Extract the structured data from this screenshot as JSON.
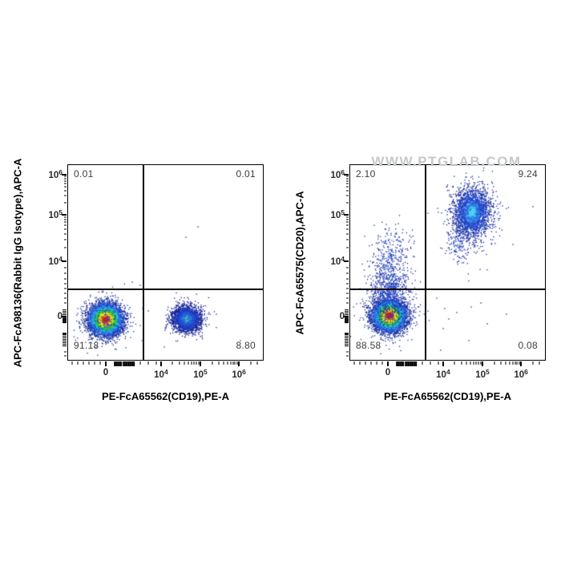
{
  "watermark": "WWW.PTGLAB.COM",
  "chart_data": {
    "type": "scatter",
    "subtype": "flow_cytometry_pseudocolor_dot_plot",
    "axes": {
      "x": {
        "scale": "biexponential",
        "tick_labels": [
          "0",
          "10^4",
          "10^5",
          "10^6"
        ]
      },
      "y": {
        "scale": "biexponential",
        "tick_labels": [
          "0",
          "10^4",
          "10^5",
          "10^6"
        ]
      }
    },
    "x_ticks": {
      "major": [
        {
          "pos": 0.193,
          "base": "0",
          "exp": ""
        },
        {
          "pos": 0.477,
          "base": "10",
          "exp": "4"
        },
        {
          "pos": 0.679,
          "base": "10",
          "exp": "5"
        },
        {
          "pos": 0.877,
          "base": "10",
          "exp": "6"
        }
      ],
      "minor": [
        0.021,
        0.049,
        0.078,
        0.107,
        0.136,
        0.165,
        0.37,
        0.412,
        0.452,
        0.537,
        0.572,
        0.597,
        0.617,
        0.633,
        0.646,
        0.658,
        0.669,
        0.739,
        0.774,
        0.799,
        0.818,
        0.834,
        0.847,
        0.858,
        0.869,
        0.937,
        0.972
      ],
      "cluster": [
        0.24,
        0.247,
        0.254,
        0.261,
        0.268,
        0.275,
        0.282,
        0.289,
        0.296,
        0.303,
        0.31,
        0.317,
        0.324,
        0.331,
        0.338
      ]
    },
    "y_ticks": {
      "major": [
        {
          "pos": 0.049,
          "base": "10",
          "exp": "6"
        },
        {
          "pos": 0.255,
          "base": "10",
          "exp": "5"
        },
        {
          "pos": 0.494,
          "base": "10",
          "exp": "4"
        },
        {
          "pos": 0.778,
          "base": "0",
          "exp": ""
        }
      ],
      "minor": [
        0.059,
        0.07,
        0.082,
        0.096,
        0.112,
        0.132,
        0.158,
        0.194,
        0.267,
        0.279,
        0.293,
        0.309,
        0.328,
        0.352,
        0.382,
        0.424,
        0.525,
        0.554,
        0.583,
        0.607,
        0.632,
        0.657,
        0.682,
        0.707,
        0.957,
        0.98
      ],
      "cluster": [
        0.744,
        0.752,
        0.76,
        0.768,
        0.776,
        0.784,
        0.792,
        0.8,
        0.808,
        0.864,
        0.872,
        0.88,
        0.888,
        0.896,
        0.904,
        0.912,
        0.92,
        0.928
      ]
    },
    "palettes": {
      "jet": [
        [
          0.4,
          "#dd1c10"
        ],
        [
          0.62,
          "#ff7800"
        ],
        [
          0.9,
          "#ffdc00"
        ],
        [
          1.1,
          "#b8e818"
        ],
        [
          1.4,
          "#2fc837"
        ],
        [
          1.68,
          "#22c3cf"
        ],
        [
          1.98,
          "#2e86e8"
        ],
        [
          2.35,
          "#2254d4"
        ],
        [
          9,
          "#18309f"
        ]
      ],
      "blue_cyan": [
        [
          0.22,
          "#35c8b0"
        ],
        [
          0.45,
          "#38aadc"
        ],
        [
          0.78,
          "#2f7ae0"
        ],
        [
          1.2,
          "#2453d6"
        ],
        [
          1.75,
          "#1c3cba"
        ],
        [
          9,
          "#141f93"
        ]
      ],
      "blue_cyan_bright": [
        [
          0.28,
          "#4fd2f2"
        ],
        [
          0.5,
          "#3ec1ee"
        ],
        [
          0.92,
          "#2b79e4"
        ],
        [
          1.48,
          "#1f46cc"
        ],
        [
          2.05,
          "#1a35ad"
        ],
        [
          9,
          "#12249a"
        ]
      ],
      "navy": [
        [
          1.2,
          "#2648c4"
        ],
        [
          9,
          "#17289c"
        ]
      ]
    },
    "plots": [
      {
        "name": "isotype_control_plot",
        "y_axis_label": "APC-FcA98136(Rabbit IgG Isotype),APC-A",
        "x_axis_label": "PE-FcA65562(CD19),PE-A",
        "quadrants": {
          "top_left": "0.01",
          "top_right": "0.01",
          "bottom_left": "91.18",
          "bottom_right": "8.80"
        },
        "divider": {
          "x_frac": 0.387,
          "y_frac": 0.636
        },
        "populations": [
          {
            "name": "CD19-neg main",
            "cx": 47,
            "cy": 193,
            "sx": 9.5,
            "sy": 9,
            "n": 7000,
            "palette": "jet",
            "seed": 101
          },
          {
            "name": "CD19-neg halo",
            "cx": 47,
            "cy": 193,
            "sx": 16,
            "sy": 15,
            "n": 380,
            "palette": "navy",
            "seed": 102
          },
          {
            "name": "CD19-pos isotype-neg",
            "cx": 148,
            "cy": 192,
            "sx": 8.5,
            "sy": 7.5,
            "n": 2500,
            "palette": "blue_cyan",
            "seed": 103
          },
          {
            "name": "CD19-pos halo",
            "cx": 148,
            "cy": 192,
            "sx": 14,
            "sy": 12,
            "n": 150,
            "palette": "navy",
            "seed": 104
          }
        ],
        "extra_dots": [
          [
            162,
            77
          ],
          [
            147,
            90
          ],
          [
            100,
            182
          ],
          [
            185,
            186
          ],
          [
            215,
            219
          ],
          [
            120,
            227
          ],
          [
            90,
            150
          ],
          [
            60,
            230
          ],
          [
            80,
            146
          ]
        ]
      },
      {
        "name": "cd20_antibody_plot",
        "y_axis_label": "APC-FcA65575(CD20),APC-A",
        "x_axis_label": "PE-FcA65562(CD19),PE-A",
        "quadrants": {
          "top_left": "2.10",
          "top_right": "9.24",
          "bottom_left": "88.58",
          "bottom_right": "0.08"
        },
        "divider": {
          "x_frac": 0.387,
          "y_frac": 0.636
        },
        "populations": [
          {
            "name": "CD19-neg CD20-neg main",
            "cx": 49,
            "cy": 188,
            "sx": 9.5,
            "sy": 9,
            "n": 7000,
            "palette": "jet",
            "seed": 201
          },
          {
            "name": "main halo",
            "cx": 49,
            "cy": 188,
            "sx": 16,
            "sy": 15,
            "n": 380,
            "palette": "navy",
            "seed": 202
          },
          {
            "name": "CD20 smear low",
            "cx": 49,
            "cy": 158,
            "sx": 12,
            "sy": 16,
            "n": 620,
            "palette": "navy",
            "seed": 203
          },
          {
            "name": "CD20 smear mid",
            "cx": 50,
            "cy": 124,
            "sx": 13,
            "sy": 16,
            "n": 260,
            "palette": "navy",
            "seed": 204
          },
          {
            "name": "CD20 smear high",
            "cx": 51,
            "cy": 95,
            "sx": 14,
            "sy": 13,
            "n": 85,
            "palette": "navy",
            "seed": 205
          },
          {
            "name": "CD19-pos CD20-pos B cells",
            "cx": 152,
            "cy": 59,
            "sx": 11,
            "sy": 15,
            "n": 2400,
            "palette": "blue_cyan_bright",
            "seed": 206
          },
          {
            "name": "B-cell halo",
            "cx": 152,
            "cy": 62,
            "sx": 18,
            "sy": 24,
            "n": 220,
            "palette": "navy",
            "seed": 207
          },
          {
            "name": "B-cell tail",
            "cx": 136,
            "cy": 97,
            "sx": 9,
            "sy": 14,
            "n": 130,
            "palette": "navy",
            "seed": 208
          }
        ],
        "extra_dots": [
          [
            118,
            179
          ],
          [
            133,
            184
          ],
          [
            151,
            177
          ],
          [
            163,
            172
          ],
          [
            123,
            192
          ],
          [
            116,
            204
          ],
          [
            108,
            166
          ],
          [
            171,
            198
          ],
          [
            195,
            186
          ],
          [
            148,
            219
          ],
          [
            113,
            231
          ],
          [
            228,
            52
          ],
          [
            203,
            99
          ],
          [
            97,
            60
          ],
          [
            80,
            95
          ]
        ]
      }
    ]
  }
}
